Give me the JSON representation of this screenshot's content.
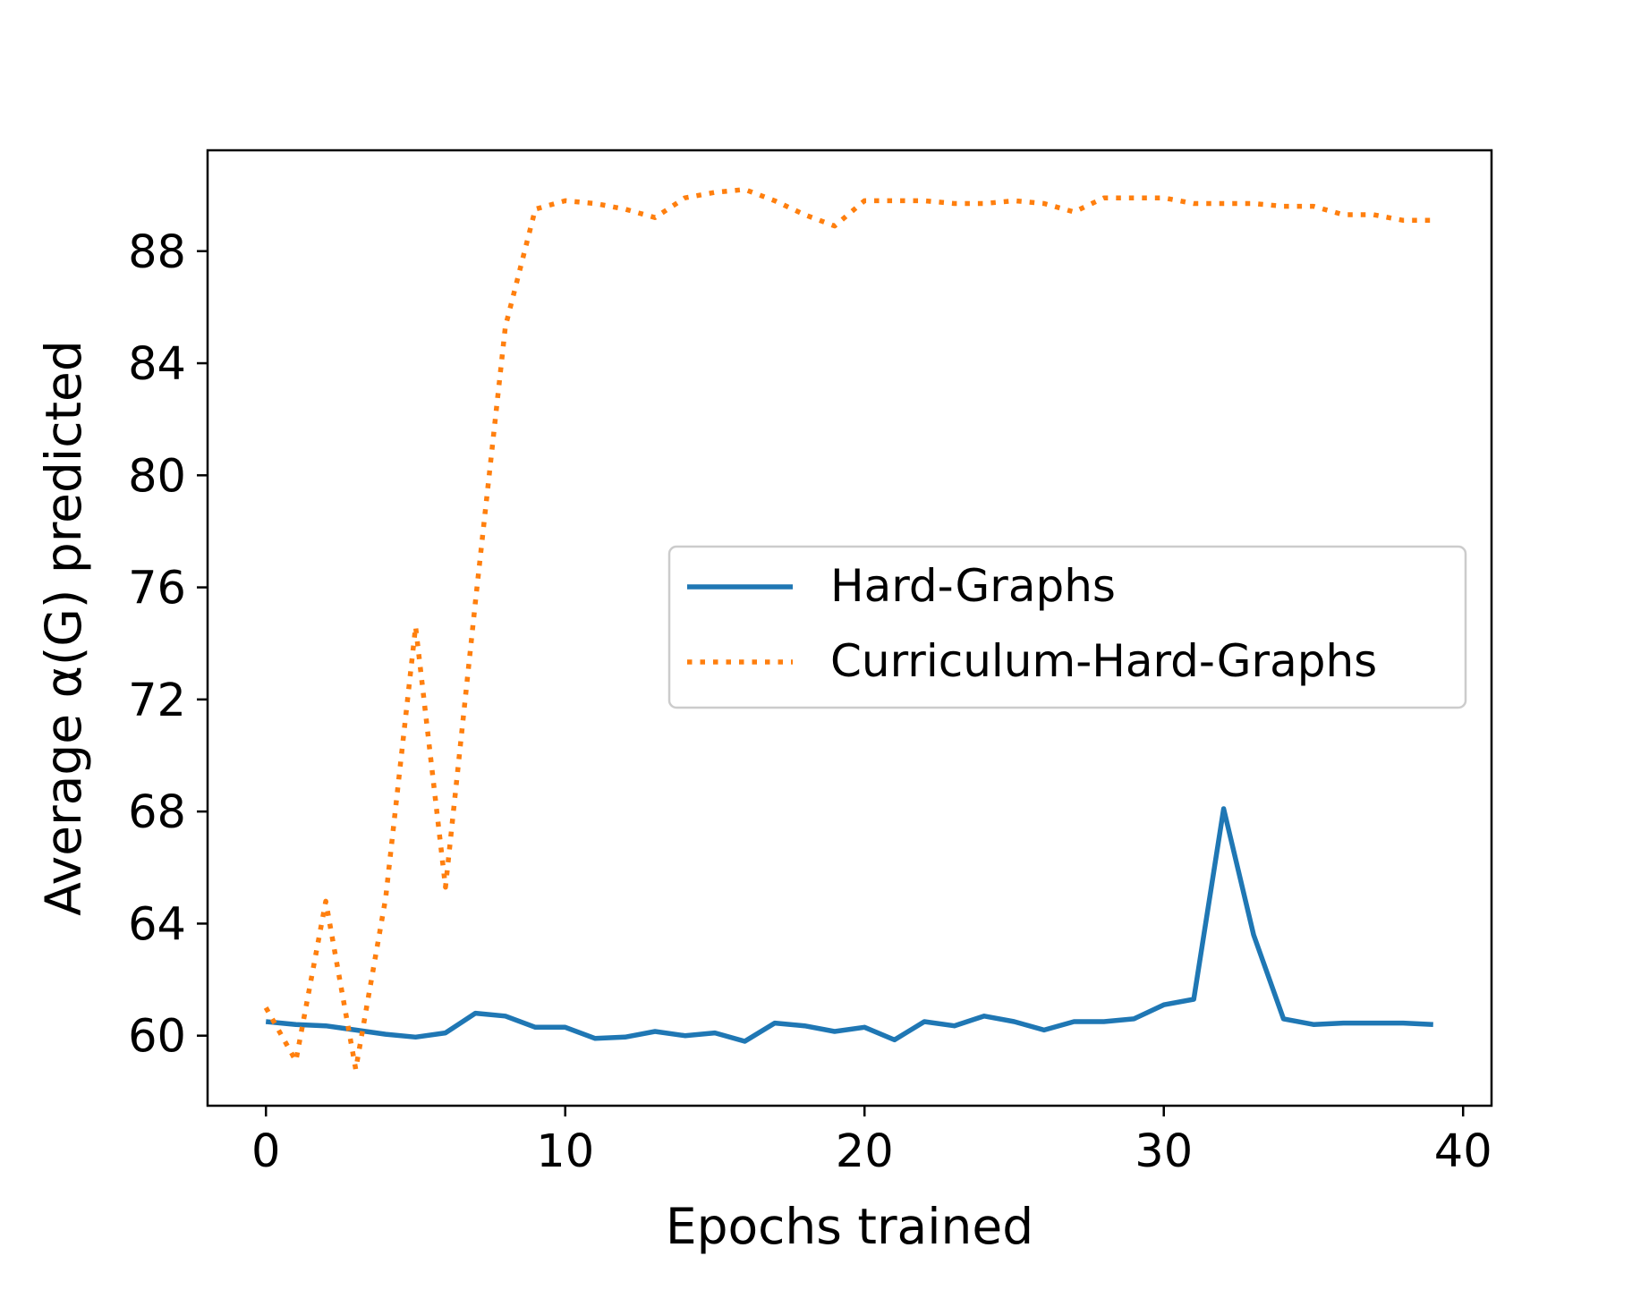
{
  "chart_data": {
    "type": "line",
    "title": "",
    "xlabel": "Epochs trained",
    "ylabel": "Average α(G) predicted",
    "xlim": [
      -1.95,
      40.95
    ],
    "ylim": [
      57.5,
      91.6
    ],
    "xticks": [
      0,
      10,
      20,
      30,
      40
    ],
    "yticks": [
      60,
      64,
      68,
      72,
      76,
      80,
      84,
      88
    ],
    "grid": false,
    "legend": {
      "placement": "center-right"
    },
    "x": [
      0,
      1,
      2,
      3,
      4,
      5,
      6,
      7,
      8,
      9,
      10,
      11,
      12,
      13,
      14,
      15,
      16,
      17,
      18,
      19,
      20,
      21,
      22,
      23,
      24,
      25,
      26,
      27,
      28,
      29,
      30,
      31,
      32,
      33,
      34,
      35,
      36,
      37,
      38,
      39
    ],
    "series": [
      {
        "name": "Hard-Graphs",
        "color": "#1f77b4",
        "style": "solid",
        "values": [
          60.5,
          60.4,
          60.35,
          60.2,
          60.05,
          59.95,
          60.1,
          60.8,
          60.7,
          60.3,
          60.3,
          59.9,
          59.95,
          60.15,
          60.0,
          60.1,
          59.8,
          60.45,
          60.35,
          60.15,
          60.3,
          59.85,
          60.5,
          60.35,
          60.7,
          60.5,
          60.2,
          60.5,
          60.5,
          60.6,
          61.1,
          61.3,
          68.1,
          63.6,
          60.6,
          60.4,
          60.45,
          60.45,
          60.45,
          60.4
        ]
      },
      {
        "name": "Curriculum-Hard-Graphs",
        "color": "#ff7f0e",
        "style": "dotted",
        "values": [
          61.0,
          59.1,
          64.8,
          58.8,
          64.9,
          74.6,
          65.3,
          75.5,
          85.3,
          89.5,
          89.8,
          89.7,
          89.5,
          89.2,
          89.9,
          90.1,
          90.2,
          89.8,
          89.3,
          88.9,
          89.8,
          89.8,
          89.8,
          89.7,
          89.7,
          89.8,
          89.7,
          89.4,
          89.9,
          89.9,
          89.9,
          89.7,
          89.7,
          89.7,
          89.6,
          89.6,
          89.3,
          89.3,
          89.1,
          89.1
        ]
      }
    ]
  }
}
